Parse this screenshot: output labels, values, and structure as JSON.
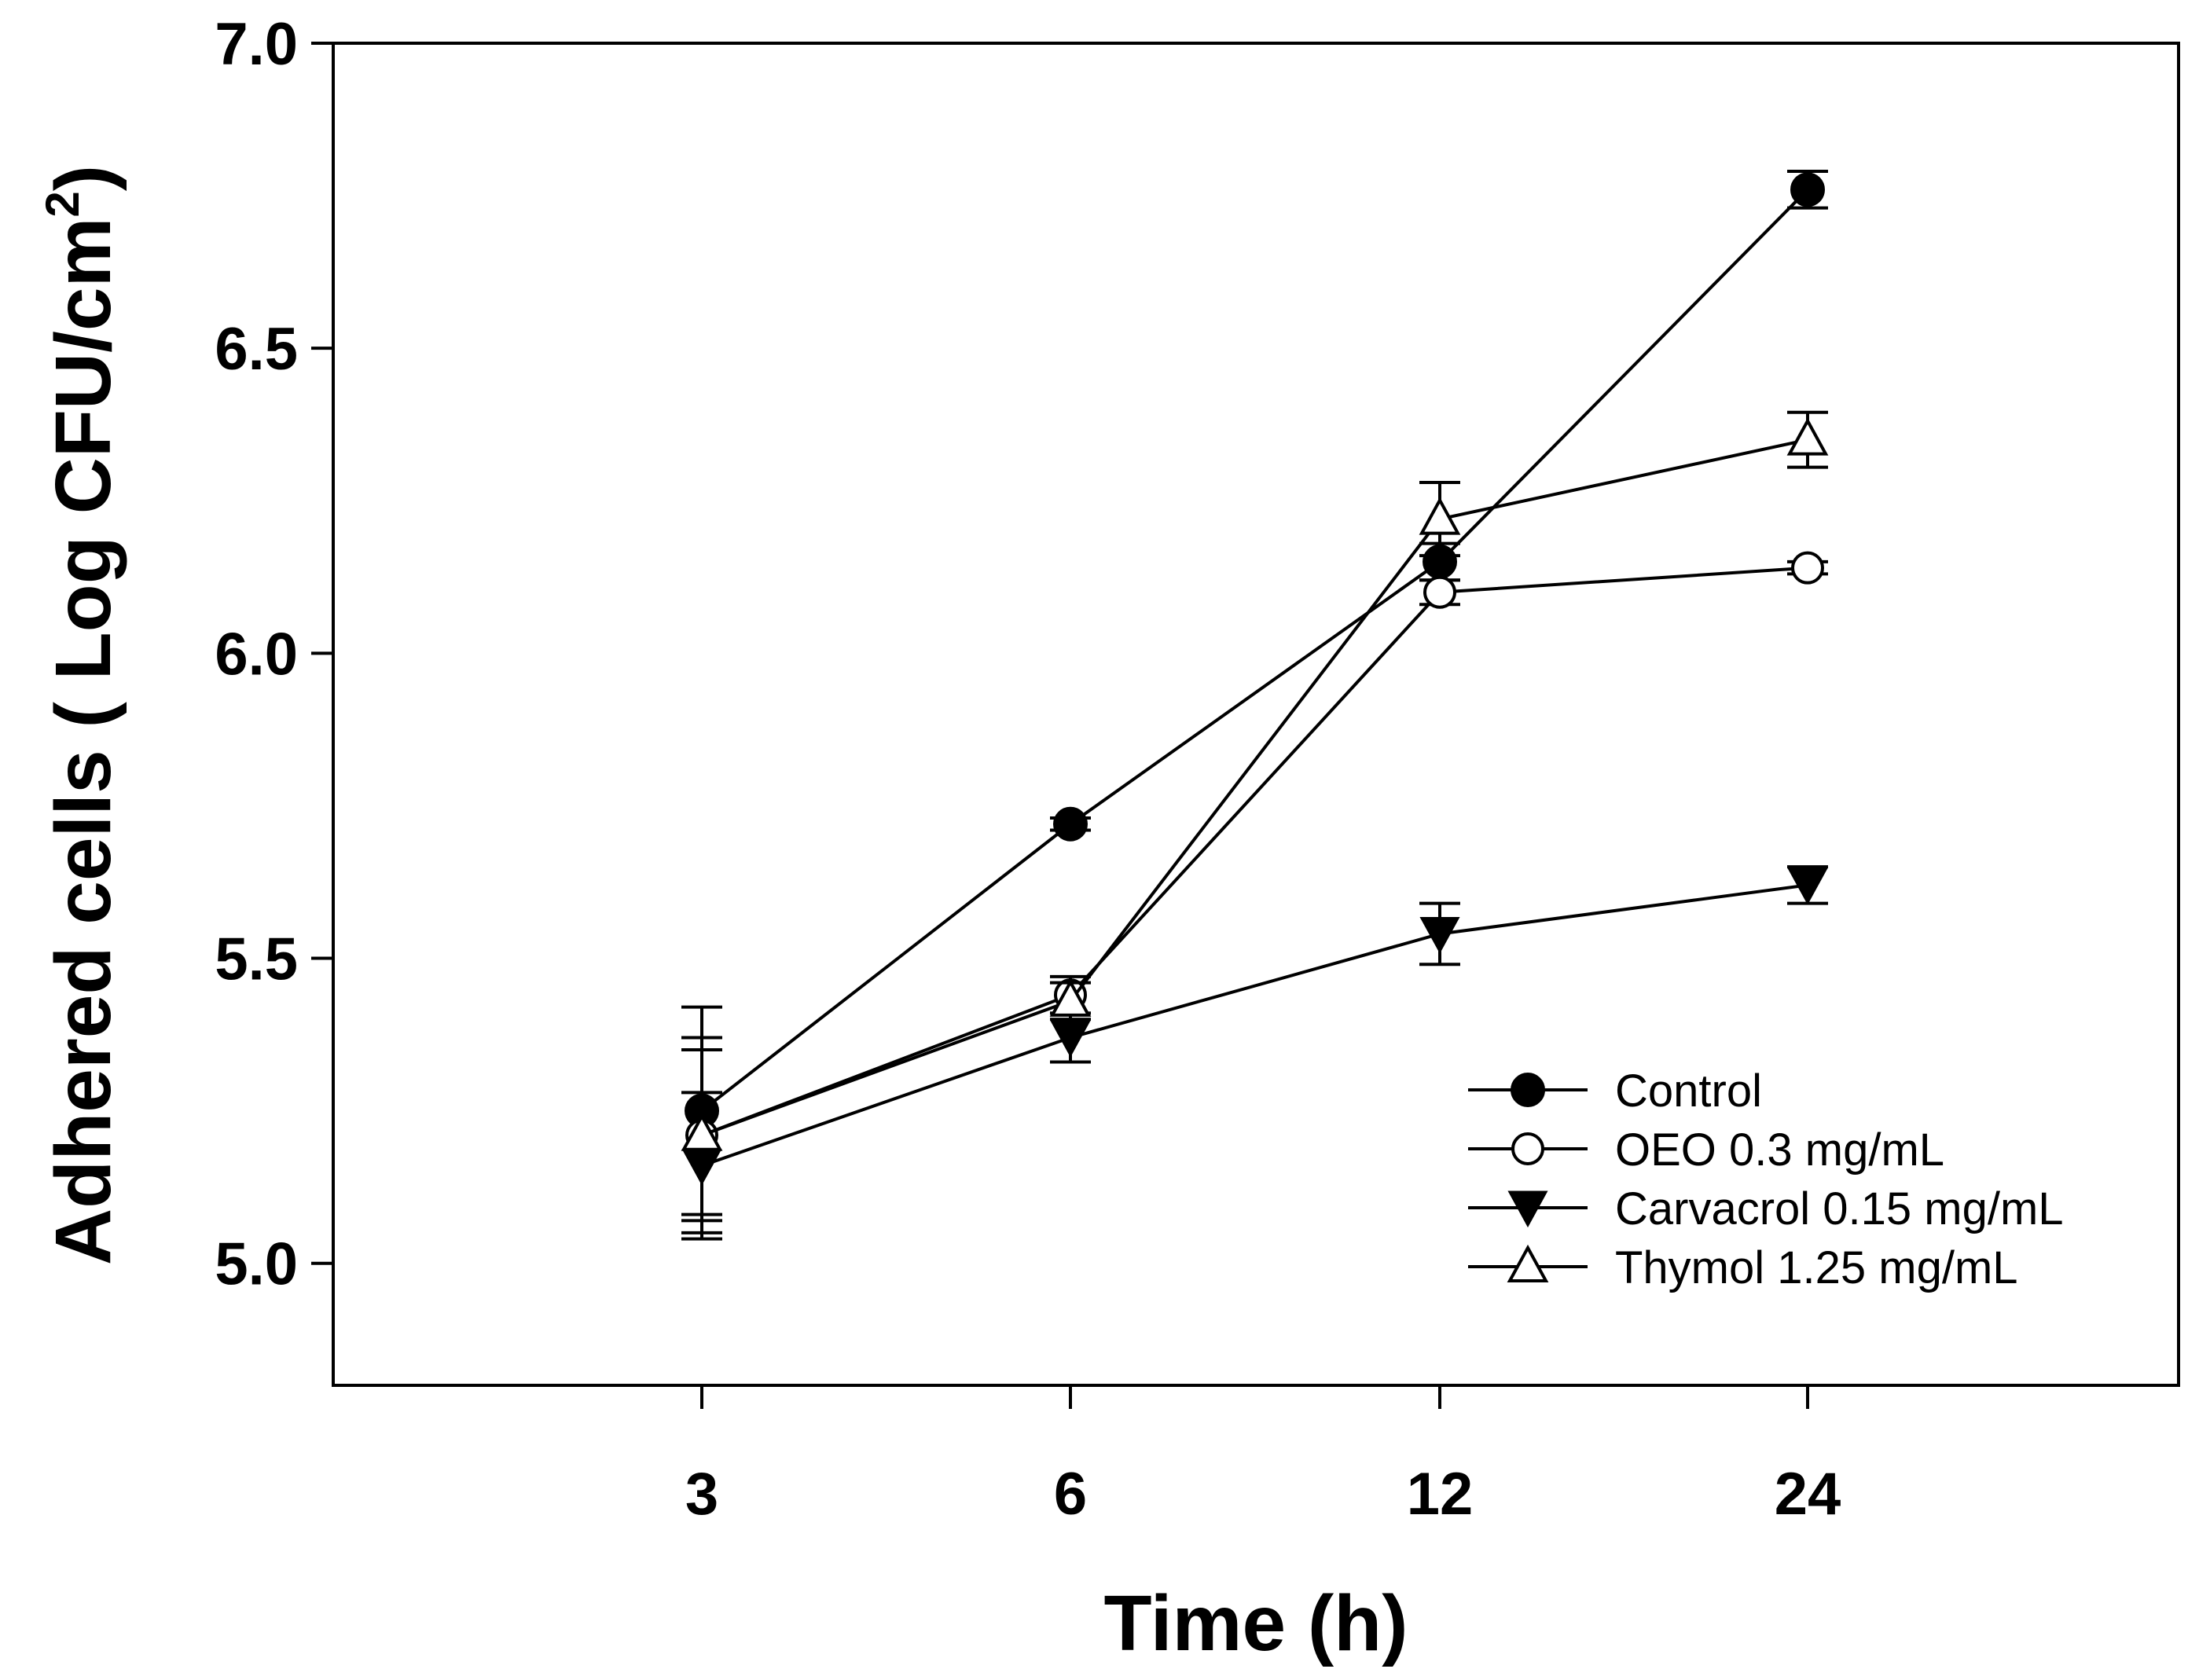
{
  "chart_data": {
    "type": "line",
    "title": "",
    "xlabel": "Time (h)",
    "ylabel_main": "Adhered cells ( Log CFU/cm",
    "ylabel_sup": "2",
    "ylabel_close": ")",
    "categories": [
      "3",
      "6",
      "12",
      "24"
    ],
    "ylim": [
      4.8,
      7.0
    ],
    "yticks": [
      "5.0",
      "5.5",
      "6.0",
      "6.5",
      "7.0"
    ],
    "ytick_values": [
      5.0,
      5.5,
      6.0,
      6.5,
      7.0
    ],
    "legend_position": "bottom-right",
    "colors": {
      "line": "#000000",
      "axis": "#000000",
      "background": "#ffffff"
    },
    "series": [
      {
        "name": "Control",
        "marker": "filled-circle",
        "values": [
          5.25,
          5.72,
          6.15,
          6.76
        ],
        "errors": [
          0.17,
          0.01,
          0.03,
          0.03
        ]
      },
      {
        "name": "OEO 0.3 mg/mL",
        "marker": "open-circle",
        "values": [
          5.21,
          5.44,
          6.1,
          6.14
        ],
        "errors": [
          0.16,
          0.03,
          0.02,
          0.01
        ]
      },
      {
        "name": "Carvacrol 0.15 mg/mL",
        "marker": "filled-triangle-down",
        "values": [
          5.16,
          5.37,
          5.54,
          5.62
        ],
        "errors": [
          0.12,
          0.04,
          0.05,
          0.03
        ]
      },
      {
        "name": "Thymol 1.25 mg/mL",
        "marker": "open-triangle-up",
        "values": [
          5.21,
          5.43,
          6.22,
          6.35
        ],
        "errors": [
          0.14,
          0.03,
          0.06,
          0.045
        ]
      }
    ]
  }
}
